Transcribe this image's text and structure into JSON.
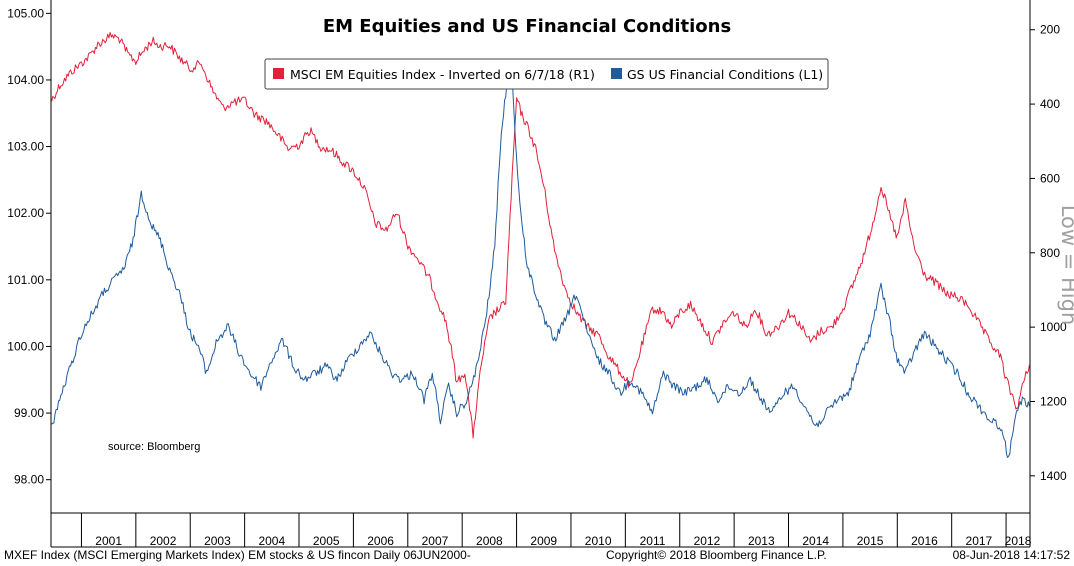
{
  "chart_data": {
    "type": "line",
    "title": "EM Equities and US Financial Conditions",
    "right_axis_annotation": "Low = High",
    "source_note": "source: Bloomberg",
    "legend_placement": "top-center",
    "grid": false,
    "x_tick_labels": [
      "2001",
      "2002",
      "2003",
      "2004",
      "2005",
      "2006",
      "2007",
      "2008",
      "2009",
      "2010",
      "2011",
      "2012",
      "2013",
      "2014",
      "2015",
      "2016",
      "2017",
      "2018"
    ],
    "xlim": [
      2000.44,
      2018.44
    ],
    "left_axis": {
      "ylim": [
        97.5,
        105.2
      ],
      "ticks": [
        98.0,
        99.0,
        100.0,
        101.0,
        102.0,
        103.0,
        104.0,
        105.0
      ],
      "tick_labels": [
        "98.00",
        "99.00",
        "100.00",
        "101.00",
        "102.00",
        "103.00",
        "104.00",
        "105.00"
      ]
    },
    "right_axis": {
      "inverted": true,
      "ylim": [
        1500,
        120
      ],
      "ticks": [
        200,
        400,
        600,
        800,
        1000,
        1200,
        1400
      ],
      "tick_labels": [
        "200",
        "400",
        "600",
        "800",
        "1000",
        "1200",
        "1400"
      ]
    },
    "series": [
      {
        "name": "MSCI EM Equities Index - Inverted on 6/7/18 (R1)",
        "axis": "right",
        "color": "#e3203a",
        "x": [
          2000.45,
          2000.6,
          2000.8,
          2001.0,
          2001.15,
          2001.3,
          2001.55,
          2001.7,
          2001.85,
          2002.0,
          2002.15,
          2002.3,
          2002.45,
          2002.6,
          2002.8,
          2003.0,
          2003.2,
          2003.4,
          2003.6,
          2003.8,
          2004.0,
          2004.2,
          2004.4,
          2004.6,
          2004.8,
          2005.0,
          2005.2,
          2005.4,
          2005.6,
          2005.8,
          2006.0,
          2006.2,
          2006.4,
          2006.6,
          2006.8,
          2007.0,
          2007.2,
          2007.4,
          2007.55,
          2007.7,
          2007.8,
          2007.9,
          2008.05,
          2008.2,
          2008.35,
          2008.5,
          2008.6,
          2008.7,
          2008.8,
          2008.9,
          2009.0,
          2009.1,
          2009.2,
          2009.35,
          2009.5,
          2009.7,
          2009.9,
          2010.1,
          2010.3,
          2010.5,
          2010.7,
          2010.9,
          2011.1,
          2011.3,
          2011.5,
          2011.7,
          2011.85,
          2012.0,
          2012.2,
          2012.4,
          2012.6,
          2012.8,
          2013.0,
          2013.2,
          2013.4,
          2013.6,
          2013.8,
          2014.0,
          2014.2,
          2014.4,
          2014.6,
          2014.8,
          2015.0,
          2015.2,
          2015.4,
          2015.55,
          2015.7,
          2015.9,
          2016.0,
          2016.15,
          2016.3,
          2016.5,
          2016.7,
          2016.9,
          2017.1,
          2017.3,
          2017.5,
          2017.7,
          2017.9,
          2018.0,
          2018.1,
          2018.2,
          2018.3,
          2018.43
        ],
        "values": [
          390,
          350,
          315,
          290,
          270,
          240,
          215,
          225,
          265,
          285,
          255,
          230,
          245,
          240,
          275,
          305,
          290,
          360,
          410,
          395,
          390,
          430,
          445,
          480,
          520,
          510,
          470,
          515,
          525,
          555,
          580,
          625,
          720,
          740,
          690,
          780,
          820,
          870,
          930,
          985,
          1060,
          1150,
          1120,
          1290,
          1100,
          980,
          960,
          950,
          930,
          650,
          385,
          430,
          460,
          520,
          620,
          795,
          900,
          960,
          1000,
          1020,
          1080,
          1120,
          1160,
          1050,
          950,
          960,
          1000,
          960,
          940,
          990,
          1040,
          990,
          960,
          1000,
          950,
          1020,
          1000,
          960,
          990,
          1040,
          1010,
          1000,
          950,
          880,
          800,
          720,
          620,
          720,
          760,
          660,
          780,
          860,
          880,
          910,
          920,
          940,
          990,
          1040,
          1080,
          1140,
          1180,
          1220,
          1160,
          1100
        ]
      },
      {
        "name": "GS US Financial Conditions (L1)",
        "axis": "left",
        "color": "#1f5b9b",
        "x": [
          2000.45,
          2000.6,
          2000.8,
          2001.0,
          2001.2,
          2001.4,
          2001.6,
          2001.8,
          2001.95,
          2002.1,
          2002.3,
          2002.45,
          2002.6,
          2002.8,
          2003.0,
          2003.15,
          2003.3,
          2003.5,
          2003.7,
          2003.9,
          2004.1,
          2004.3,
          2004.5,
          2004.7,
          2004.9,
          2005.1,
          2005.3,
          2005.5,
          2005.7,
          2005.9,
          2006.1,
          2006.3,
          2006.5,
          2006.7,
          2006.9,
          2007.1,
          2007.3,
          2007.45,
          2007.6,
          2007.75,
          2007.9,
          2008.1,
          2008.3,
          2008.45,
          2008.6,
          2008.7,
          2008.8,
          2008.9,
          2009.0,
          2009.1,
          2009.2,
          2009.35,
          2009.5,
          2009.7,
          2009.9,
          2010.1,
          2010.3,
          2010.5,
          2010.7,
          2010.9,
          2011.1,
          2011.3,
          2011.5,
          2011.7,
          2011.9,
          2012.1,
          2012.3,
          2012.5,
          2012.7,
          2012.9,
          2013.1,
          2013.3,
          2013.5,
          2013.7,
          2013.9,
          2014.1,
          2014.3,
          2014.5,
          2014.7,
          2014.9,
          2015.1,
          2015.3,
          2015.5,
          2015.7,
          2015.85,
          2016.0,
          2016.15,
          2016.3,
          2016.5,
          2016.7,
          2016.9,
          2017.1,
          2017.3,
          2017.5,
          2017.7,
          2017.9,
          2018.05,
          2018.15,
          2018.3,
          2018.43
        ],
        "values": [
          98.8,
          99.2,
          99.7,
          100.2,
          100.5,
          100.8,
          101.0,
          101.2,
          101.6,
          102.3,
          101.8,
          101.6,
          101.2,
          100.8,
          100.2,
          100.0,
          99.6,
          100.1,
          100.3,
          99.9,
          99.6,
          99.4,
          99.8,
          100.1,
          99.7,
          99.5,
          99.6,
          99.7,
          99.5,
          99.8,
          100.0,
          100.2,
          99.9,
          99.6,
          99.5,
          99.6,
          99.2,
          99.6,
          98.9,
          99.4,
          99.0,
          99.2,
          99.8,
          100.5,
          101.5,
          103.0,
          103.8,
          104.3,
          102.8,
          101.8,
          101.2,
          100.8,
          100.4,
          100.1,
          100.4,
          100.8,
          100.2,
          99.8,
          99.6,
          99.3,
          99.5,
          99.3,
          99.0,
          99.6,
          99.4,
          99.3,
          99.4,
          99.5,
          99.2,
          99.4,
          99.3,
          99.5,
          99.2,
          99.0,
          99.3,
          99.4,
          99.1,
          98.8,
          99.0,
          99.2,
          99.3,
          99.8,
          100.2,
          100.9,
          100.4,
          99.8,
          99.6,
          99.9,
          100.2,
          100.0,
          99.8,
          99.6,
          99.3,
          99.1,
          98.9,
          98.8,
          98.3,
          98.9,
          99.2,
          99.1
        ]
      }
    ]
  },
  "footer": {
    "left": "MXEF Index (MSCI Emerging Markets Index) EM stocks & US fincon  Daily 06JUN2000-",
    "center": "Copyright© 2018 Bloomberg Finance L.P.",
    "right": "08-Jun-2018 14:17:52"
  }
}
